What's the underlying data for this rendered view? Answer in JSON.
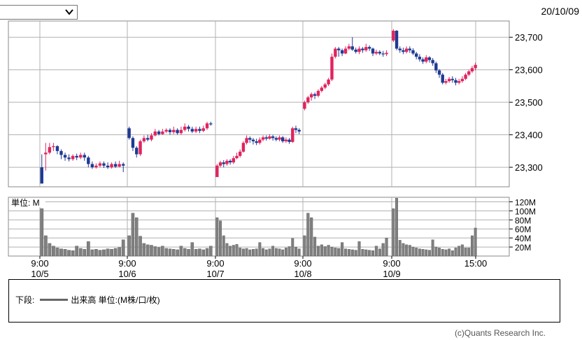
{
  "header": {
    "selector_value": "",
    "date": "20/10/09"
  },
  "legend": {
    "prefix": "下段:",
    "label": "出来高 単位:(M株/口/枚)"
  },
  "copyright": "(c)Quants Research Inc.",
  "colors": {
    "up": "#e0245e",
    "down": "#1f3a93",
    "volume": "#808080",
    "grid": "#b0b0b0"
  },
  "chart_data": [
    {
      "type": "candlestick",
      "ylim": [
        23240,
        23750
      ],
      "yticks": [
        23300,
        23400,
        23500,
        23600,
        23700
      ],
      "ytick_labels": [
        "23,300",
        "23,400",
        "23,500",
        "23,600",
        "23,700"
      ],
      "xtick_labels": [
        {
          "time": "9:00",
          "date": "10/5"
        },
        {
          "time": "9:00",
          "date": "10/6"
        },
        {
          "time": "9:00",
          "date": "10/7"
        },
        {
          "time": "9:00",
          "date": "10/8"
        },
        {
          "time": "9:00",
          "date": "10/9"
        },
        {
          "time": "15:00",
          "date": ""
        }
      ],
      "sessions": [
        {
          "date": "10/5",
          "candles": [
            [
              23300,
              23250,
              23340,
              23250
            ],
            [
              23340,
              23345,
              23375,
              23290
            ],
            [
              23345,
              23362,
              23375,
              23340
            ],
            [
              23362,
              23365,
              23375,
              23350
            ],
            [
              23365,
              23350,
              23368,
              23340
            ],
            [
              23350,
              23338,
              23355,
              23325
            ],
            [
              23338,
              23330,
              23345,
              23320
            ],
            [
              23330,
              23325,
              23340,
              23318
            ],
            [
              23325,
              23335,
              23340,
              23320
            ],
            [
              23335,
              23330,
              23342,
              23322
            ],
            [
              23330,
              23338,
              23345,
              23325
            ],
            [
              23338,
              23330,
              23345,
              23320
            ],
            [
              23330,
              23310,
              23335,
              23300
            ],
            [
              23310,
              23300,
              23318,
              23295
            ],
            [
              23300,
              23305,
              23312,
              23296
            ],
            [
              23305,
              23312,
              23318,
              23300
            ],
            [
              23312,
              23305,
              23318,
              23298
            ],
            [
              23305,
              23300,
              23315,
              23295
            ],
            [
              23300,
              23310,
              23315,
              23296
            ],
            [
              23310,
              23302,
              23318,
              23298
            ],
            [
              23302,
              23310,
              23320,
              23300
            ],
            [
              23310,
              23305,
              23315,
              23285
            ]
          ]
        },
        {
          "date": "10/6",
          "candles": [
            [
              23420,
              23390,
              23425,
              23385
            ],
            [
              23390,
              23360,
              23395,
              23350
            ],
            [
              23360,
              23340,
              23365,
              23330
            ],
            [
              23340,
              23380,
              23385,
              23335
            ],
            [
              23380,
              23390,
              23398,
              23375
            ],
            [
              23390,
              23385,
              23400,
              23380
            ],
            [
              23385,
              23398,
              23405,
              23380
            ],
            [
              23398,
              23410,
              23418,
              23395
            ],
            [
              23410,
              23402,
              23415,
              23398
            ],
            [
              23402,
              23410,
              23418,
              23400
            ],
            [
              23410,
              23415,
              23420,
              23405
            ],
            [
              23415,
              23408,
              23420,
              23400
            ],
            [
              23408,
              23415,
              23425,
              23402
            ],
            [
              23415,
              23405,
              23420,
              23400
            ],
            [
              23405,
              23415,
              23425,
              23400
            ],
            [
              23415,
              23425,
              23435,
              23410
            ],
            [
              23425,
              23418,
              23430,
              23410
            ],
            [
              23418,
              23410,
              23425,
              23405
            ],
            [
              23410,
              23418,
              23425,
              23405
            ],
            [
              23418,
              23412,
              23425,
              23405
            ],
            [
              23412,
              23420,
              23428,
              23408
            ],
            [
              23420,
              23435,
              23440,
              23415
            ],
            [
              23435,
              23432,
              23440,
              23428
            ]
          ]
        },
        {
          "date": "10/7",
          "candles": [
            [
              23270,
              23305,
              23310,
              23270
            ],
            [
              23305,
              23315,
              23320,
              23300
            ],
            [
              23315,
              23310,
              23322,
              23300
            ],
            [
              23310,
              23320,
              23325,
              23305
            ],
            [
              23320,
              23315,
              23325,
              23308
            ],
            [
              23315,
              23328,
              23335,
              23310
            ],
            [
              23328,
              23335,
              23345,
              23325
            ],
            [
              23335,
              23348,
              23355,
              23330
            ],
            [
              23348,
              23375,
              23380,
              23345
            ],
            [
              23375,
              23390,
              23398,
              23370
            ],
            [
              23390,
              23385,
              23395,
              23375
            ],
            [
              23385,
              23380,
              23390,
              23370
            ],
            [
              23380,
              23375,
              23388,
              23368
            ],
            [
              23375,
              23385,
              23392,
              23370
            ],
            [
              23385,
              23392,
              23398,
              23380
            ],
            [
              23392,
              23388,
              23398,
              23382
            ],
            [
              23388,
              23395,
              23402,
              23385
            ],
            [
              23395,
              23390,
              23400,
              23382
            ],
            [
              23390,
              23385,
              23395,
              23380
            ],
            [
              23385,
              23392,
              23398,
              23380
            ],
            [
              23392,
              23380,
              23396,
              23375
            ],
            [
              23380,
              23385,
              23392,
              23375
            ],
            [
              23385,
              23378,
              23390,
              23372
            ],
            [
              23378,
              23420,
              23425,
              23375
            ],
            [
              23420,
              23415,
              23428,
              23405
            ],
            [
              23415,
              23410,
              23420,
              23402
            ]
          ]
        },
        {
          "date": "10/8",
          "candles": [
            [
              23480,
              23500,
              23505,
              23475
            ],
            [
              23500,
              23515,
              23520,
              23495
            ],
            [
              23515,
              23525,
              23530,
              23505
            ],
            [
              23525,
              23520,
              23530,
              23510
            ],
            [
              23520,
              23535,
              23540,
              23515
            ],
            [
              23535,
              23545,
              23550,
              23530
            ],
            [
              23545,
              23555,
              23560,
              23540
            ],
            [
              23555,
              23570,
              23575,
              23550
            ],
            [
              23570,
              23640,
              23650,
              23565
            ],
            [
              23640,
              23665,
              23670,
              23635
            ],
            [
              23665,
              23660,
              23670,
              23640
            ],
            [
              23660,
              23650,
              23665,
              23642
            ],
            [
              23650,
              23665,
              23672,
              23648
            ],
            [
              23665,
              23672,
              23680,
              23660
            ],
            [
              23672,
              23662,
              23700,
              23658
            ],
            [
              23662,
              23655,
              23668,
              23650
            ],
            [
              23655,
              23665,
              23672,
              23648
            ],
            [
              23665,
              23660,
              23670,
              23652
            ],
            [
              23660,
              23670,
              23680,
              23655
            ],
            [
              23670,
              23665,
              23675,
              23658
            ],
            [
              23665,
              23650,
              23668,
              23642
            ],
            [
              23650,
              23655,
              23662,
              23645
            ],
            [
              23655,
              23650,
              23660,
              23645
            ],
            [
              23650,
              23648,
              23658,
              23640
            ],
            [
              23648,
              23652,
              23660,
              23642
            ]
          ]
        },
        {
          "date": "10/9",
          "candles": [
            [
              23690,
              23720,
              23725,
              23685
            ],
            [
              23720,
              23665,
              23722,
              23660
            ],
            [
              23665,
              23660,
              23672,
              23652
            ],
            [
              23660,
              23655,
              23668,
              23648
            ],
            [
              23655,
              23665,
              23672,
              23650
            ],
            [
              23665,
              23660,
              23672,
              23652
            ],
            [
              23660,
              23650,
              23666,
              23645
            ],
            [
              23650,
              23640,
              23655,
              23632
            ],
            [
              23640,
              23632,
              23648,
              23625
            ],
            [
              23632,
              23625,
              23638,
              23618
            ],
            [
              23625,
              23638,
              23645,
              23620
            ],
            [
              23638,
              23630,
              23642,
              23622
            ],
            [
              23630,
              23620,
              23636,
              23612
            ],
            [
              23620,
              23598,
              23625,
              23590
            ],
            [
              23598,
              23585,
              23602,
              23575
            ],
            [
              23585,
              23560,
              23590,
              23555
            ],
            [
              23560,
              23565,
              23572,
              23555
            ],
            [
              23565,
              23572,
              23578,
              23560
            ],
            [
              23572,
              23568,
              23580,
              23560
            ],
            [
              23568,
              23560,
              23575,
              23552
            ],
            [
              23560,
              23565,
              23572,
              23555
            ],
            [
              23565,
              23572,
              23580,
              23560
            ],
            [
              23572,
              23585,
              23590,
              23568
            ],
            [
              23585,
              23595,
              23600,
              23580
            ],
            [
              23595,
              23605,
              23612,
              23590
            ],
            [
              23605,
              23615,
              23622,
              23598
            ]
          ]
        }
      ]
    },
    {
      "type": "bar",
      "unit_label": "単位: M",
      "ylim": [
        0,
        130
      ],
      "yticks": [
        20,
        40,
        60,
        80,
        100,
        120
      ],
      "ytick_labels": [
        "20M",
        "40M",
        "60M",
        "80M",
        "100M",
        "120M"
      ],
      "sessions": [
        {
          "date": "10/5",
          "values": [
            105,
            45,
            28,
            22,
            18,
            16,
            15,
            13,
            12,
            22,
            17,
            15,
            32,
            14,
            15,
            13,
            14,
            16,
            15,
            17,
            19,
            36
          ]
        },
        {
          "date": "10/6",
          "values": [
            45,
            95,
            85,
            44,
            28,
            25,
            24,
            21,
            19,
            22,
            17,
            16,
            15,
            14,
            22,
            17,
            15,
            30,
            15,
            16,
            14,
            17,
            22
          ]
        },
        {
          "date": "10/7",
          "values": [
            85,
            78,
            45,
            28,
            22,
            24,
            26,
            18,
            16,
            17,
            14,
            15,
            16,
            30,
            17,
            14,
            16,
            22,
            17,
            16,
            14,
            18,
            21,
            39,
            20,
            16
          ]
        },
        {
          "date": "10/8",
          "values": [
            45,
            95,
            85,
            42,
            22,
            25,
            21,
            24,
            20,
            18,
            17,
            30,
            16,
            15,
            14,
            13,
            32,
            15,
            14,
            13,
            12,
            22,
            16,
            28,
            40
          ]
        },
        {
          "date": "10/9",
          "values": [
            105,
            128,
            35,
            28,
            25,
            24,
            20,
            18,
            16,
            15,
            14,
            13,
            36,
            20,
            18,
            15,
            14,
            16,
            12,
            18,
            22,
            25,
            18,
            18,
            45,
            62
          ]
        }
      ]
    }
  ]
}
